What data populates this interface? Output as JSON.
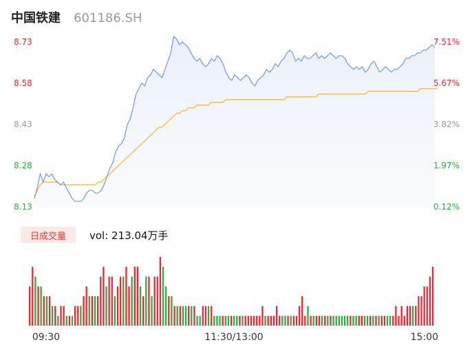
{
  "header": {
    "name": "中国铁建",
    "code": "601186.SH"
  },
  "volume_panel": {
    "label": "日成交量",
    "summary": "vol: 213.04万手"
  },
  "colors": {
    "price": "#5b8ff9",
    "avg": "#f6bd4a",
    "up": "#f5222d",
    "down": "#27ae3c",
    "neutral": "#999999"
  },
  "chart_data": [
    {
      "type": "line",
      "title": "",
      "y_left_ticks": [
        "8.73",
        "8.58",
        "8.43",
        "8.28",
        "8.13"
      ],
      "y_right_ticks": [
        "7.51%",
        "5.67%",
        "3.82%",
        "1.97%",
        "0.12%"
      ],
      "ylim": [
        8.13,
        8.73
      ],
      "x_ticks": [
        "09:30",
        "11:30/13:00",
        "15:00"
      ],
      "series": [
        {
          "role": "price",
          "values": [
            8.16,
            8.2,
            8.25,
            8.22,
            8.25,
            8.24,
            8.25,
            8.23,
            8.22,
            8.21,
            8.22,
            8.2,
            8.18,
            8.16,
            8.15,
            8.15,
            8.15,
            8.16,
            8.18,
            8.19,
            8.19,
            8.18,
            8.18,
            8.19,
            8.21,
            8.24,
            8.27,
            8.29,
            8.33,
            8.35,
            8.36,
            8.38,
            8.43,
            8.45,
            8.49,
            8.54,
            8.56,
            8.58,
            8.57,
            8.6,
            8.61,
            8.63,
            8.62,
            8.61,
            8.6,
            8.63,
            8.66,
            8.69,
            8.75,
            8.74,
            8.72,
            8.73,
            8.72,
            8.71,
            8.69,
            8.67,
            8.66,
            8.67,
            8.65,
            8.64,
            8.65,
            8.67,
            8.66,
            8.68,
            8.67,
            8.65,
            8.62,
            8.6,
            8.59,
            8.61,
            8.6,
            8.59,
            8.6,
            8.61,
            8.6,
            8.58,
            8.57,
            8.59,
            8.6,
            8.61,
            8.63,
            8.62,
            8.63,
            8.65,
            8.64,
            8.66,
            8.67,
            8.69,
            8.7,
            8.69,
            8.66,
            8.67,
            8.66,
            8.68,
            8.67,
            8.67,
            8.68,
            8.69,
            8.67,
            8.68,
            8.67,
            8.68,
            8.69,
            8.68,
            8.67,
            8.68,
            8.68,
            8.67,
            8.65,
            8.64,
            8.63,
            8.64,
            8.63,
            8.64,
            8.62,
            8.63,
            8.65,
            8.66,
            8.64,
            8.62,
            8.63,
            8.64,
            8.63,
            8.62,
            8.63,
            8.63,
            8.64,
            8.65,
            8.67,
            8.67,
            8.68,
            8.68,
            8.69,
            8.69,
            8.7,
            8.7,
            8.71,
            8.72,
            8.71
          ]
        },
        {
          "role": "average",
          "values": [
            8.17,
            8.19,
            8.21,
            8.22,
            8.22,
            8.22,
            8.22,
            8.22,
            8.22,
            8.21,
            8.21,
            8.21,
            8.21,
            8.21,
            8.21,
            8.21,
            8.21,
            8.21,
            8.21,
            8.21,
            8.21,
            8.21,
            8.22,
            8.22,
            8.23,
            8.24,
            8.25,
            8.26,
            8.27,
            8.28,
            8.29,
            8.3,
            8.31,
            8.32,
            8.33,
            8.34,
            8.35,
            8.36,
            8.37,
            8.38,
            8.39,
            8.4,
            8.41,
            8.42,
            8.42,
            8.43,
            8.44,
            8.45,
            8.46,
            8.47,
            8.47,
            8.48,
            8.48,
            8.49,
            8.49,
            8.49,
            8.5,
            8.5,
            8.5,
            8.5,
            8.5,
            8.51,
            8.51,
            8.51,
            8.51,
            8.51,
            8.52,
            8.52,
            8.52,
            8.52,
            8.52,
            8.52,
            8.52,
            8.52,
            8.52,
            8.52,
            8.52,
            8.52,
            8.52,
            8.52,
            8.52,
            8.52,
            8.52,
            8.52,
            8.52,
            8.52,
            8.52,
            8.53,
            8.53,
            8.53,
            8.53,
            8.53,
            8.53,
            8.53,
            8.53,
            8.53,
            8.53,
            8.53,
            8.54,
            8.54,
            8.54,
            8.54,
            8.54,
            8.54,
            8.54,
            8.54,
            8.54,
            8.54,
            8.54,
            8.54,
            8.54,
            8.54,
            8.54,
            8.54,
            8.54,
            8.55,
            8.55,
            8.55,
            8.55,
            8.55,
            8.55,
            8.55,
            8.55,
            8.55,
            8.55,
            8.55,
            8.55,
            8.55,
            8.55,
            8.55,
            8.55,
            8.55,
            8.55,
            8.56,
            8.56,
            8.56,
            8.56,
            8.56,
            8.56,
            8.56
          ]
        }
      ]
    },
    {
      "type": "bar",
      "title": "日成交量",
      "x_ticks": [
        "09:30",
        "11:30/13:00",
        "15:00"
      ],
      "values": [
        4,
        6,
        5,
        4,
        4,
        3,
        3,
        3,
        2,
        2,
        1,
        2,
        2,
        1,
        1,
        1,
        2,
        2,
        2,
        3,
        4,
        3,
        3,
        3,
        3,
        5,
        6,
        4,
        5,
        5,
        3,
        4,
        5,
        5,
        6,
        4,
        5,
        6,
        6,
        4,
        3,
        5,
        5,
        3,
        5,
        5,
        7,
        6,
        4,
        3,
        3,
        2,
        2,
        2,
        2,
        2,
        2,
        2,
        2,
        1,
        1,
        2,
        2,
        2,
        2,
        1,
        1,
        1,
        1,
        1,
        1,
        1,
        1,
        1,
        1,
        1,
        1,
        1,
        1,
        1,
        1,
        1,
        2,
        1,
        1,
        1,
        1,
        2,
        1,
        1,
        1,
        1,
        1,
        1,
        1,
        2,
        3,
        1,
        2,
        1,
        1,
        1,
        1,
        1,
        1,
        1,
        1,
        1,
        1,
        1,
        1,
        1,
        1,
        1,
        1,
        1,
        1,
        1,
        1,
        1,
        1,
        1,
        1,
        1,
        1,
        1,
        1,
        1,
        1,
        2,
        1,
        2,
        1,
        2,
        2,
        2,
        2,
        3,
        3,
        4,
        4,
        5,
        6
      ],
      "direction": [
        1,
        1,
        -1,
        1,
        -1,
        1,
        -1,
        1,
        -1,
        1,
        -1,
        1,
        1,
        -1,
        1,
        -1,
        1,
        1,
        -1,
        1,
        1,
        -1,
        1,
        -1,
        1,
        1,
        1,
        -1,
        1,
        1,
        -1,
        1,
        1,
        -1,
        1,
        1,
        -1,
        1,
        1,
        -1,
        1,
        -1,
        1,
        -1,
        1,
        1,
        1,
        -1,
        -1,
        1,
        -1,
        1,
        -1,
        1,
        -1,
        -1,
        1,
        -1,
        1,
        -1,
        -1,
        1,
        1,
        -1,
        1,
        -1,
        -1,
        -1,
        1,
        -1,
        -1,
        1,
        -1,
        -1,
        1,
        -1,
        1,
        1,
        1,
        1,
        1,
        1,
        1,
        -1,
        1,
        1,
        1,
        1,
        1,
        -1,
        -1,
        1,
        -1,
        1,
        1,
        1,
        1,
        1,
        -1,
        1,
        -1,
        1,
        1,
        -1,
        1,
        -1,
        1,
        -1,
        -1,
        -1,
        -1,
        -1,
        -1,
        1,
        -1,
        -1,
        1,
        1,
        -1,
        -1,
        1,
        -1,
        1,
        -1,
        1,
        1,
        -1,
        -1,
        1,
        1,
        1,
        1,
        1,
        1,
        1,
        -1,
        1,
        1,
        1,
        1,
        1,
        1,
        1,
        1,
        1,
        0
      ]
    }
  ]
}
